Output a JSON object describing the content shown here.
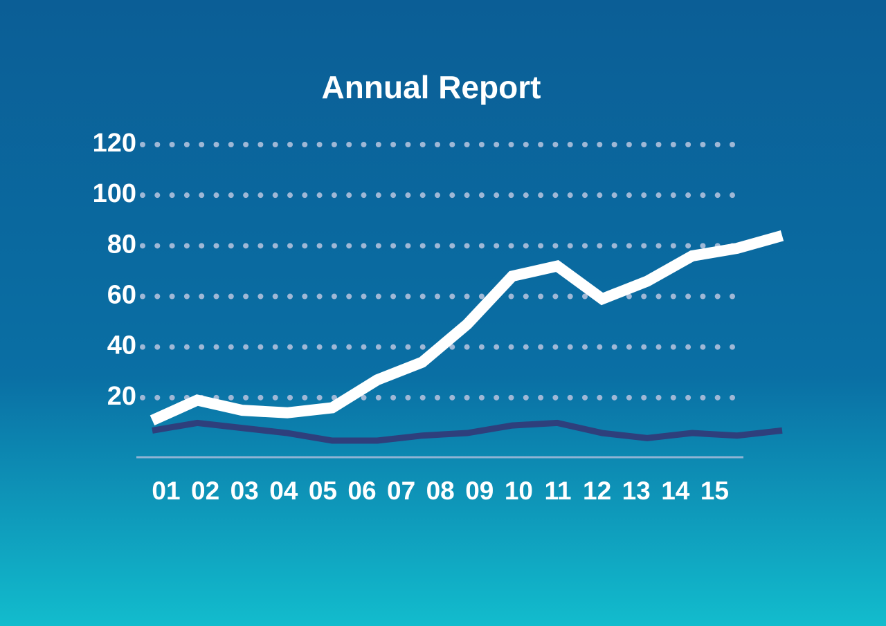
{
  "chart_data": {
    "type": "line",
    "title": "Annual Report",
    "categories": [
      "01",
      "02",
      "03",
      "04",
      "05",
      "06",
      "07",
      "08",
      "09",
      "10",
      "11",
      "12",
      "13",
      "14",
      "15"
    ],
    "series": [
      {
        "color": "#ffffff",
        "values": [
          11,
          19,
          15,
          14,
          16,
          27,
          34,
          49,
          68,
          72,
          59,
          66,
          76,
          79,
          84
        ]
      },
      {
        "color": "#2e3f7c",
        "values": [
          7,
          10,
          8,
          6,
          3,
          3,
          5,
          6,
          9,
          10,
          6,
          4,
          6,
          5,
          7
        ]
      }
    ],
    "ylim": [
      0,
      120
    ],
    "yticks": [
      20,
      40,
      60,
      80,
      100,
      120
    ],
    "grid": true
  }
}
